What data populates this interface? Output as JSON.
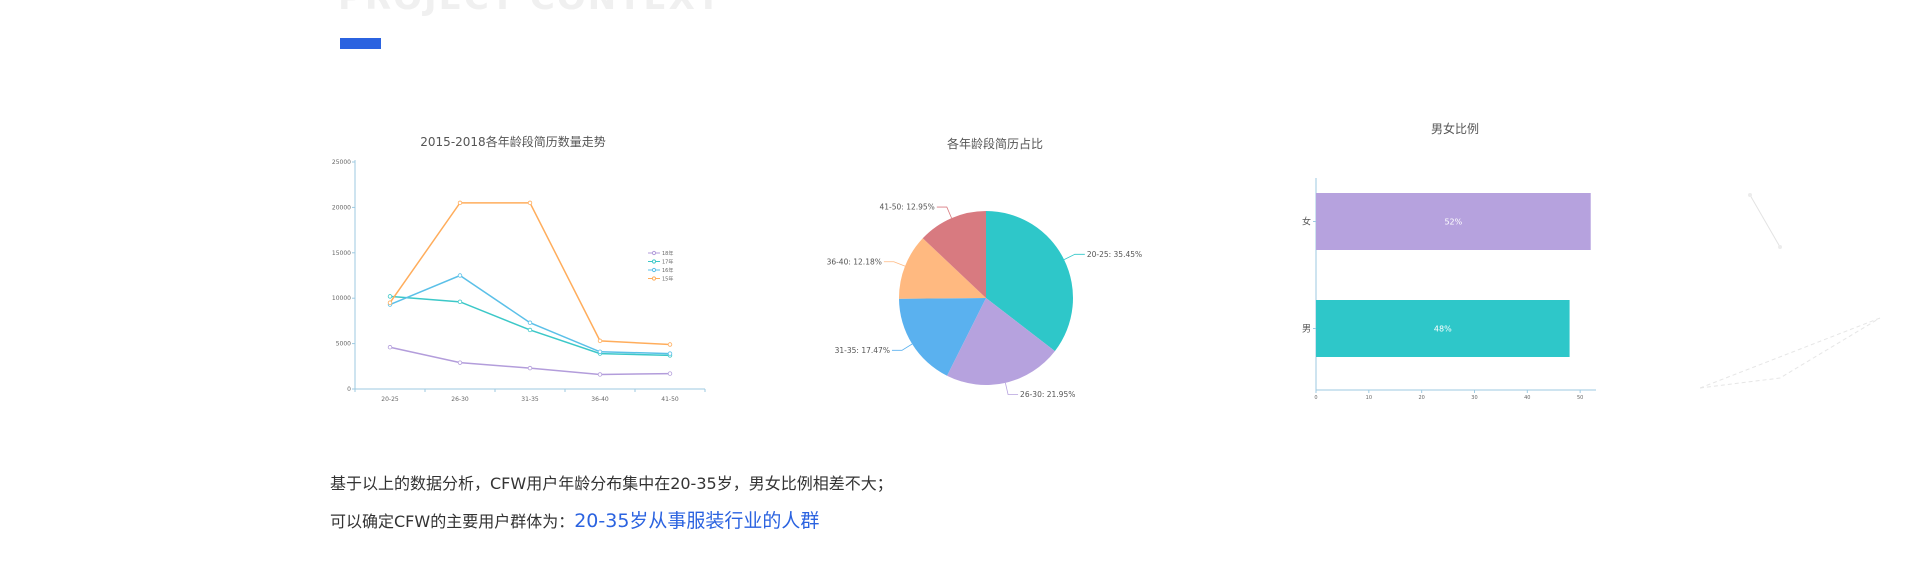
{
  "header": {
    "title_en": "PROJECT CONTEXT"
  },
  "colors": {
    "accent": "#2b63e0"
  },
  "chart_data": [
    {
      "type": "line",
      "title": "2015-2018各年龄段简历数量走势",
      "categories": [
        "20-25",
        "26-30",
        "31-35",
        "36-40",
        "41-50"
      ],
      "yticks": [
        0,
        5000,
        10000,
        15000,
        20000,
        25000
      ],
      "ylim": [
        0,
        25000
      ],
      "legend_position": "right",
      "series": [
        {
          "name": "18年",
          "color": "#b39ddb",
          "values": [
            4600,
            2900,
            2300,
            1600,
            1700
          ]
        },
        {
          "name": "17年",
          "color": "#3cc8c8",
          "values": [
            10200,
            9600,
            6500,
            3900,
            3700
          ]
        },
        {
          "name": "16年",
          "color": "#5bc0e8",
          "values": [
            9300,
            12500,
            7300,
            4100,
            3900
          ]
        },
        {
          "name": "15年",
          "color": "#ffad5c",
          "values": [
            9500,
            20500,
            20500,
            5300,
            4900
          ]
        }
      ]
    },
    {
      "type": "pie",
      "title": "各年龄段简历占比",
      "slices": [
        {
          "label": "20-25: 35.45%",
          "value": 35.45,
          "color": "#2ec7c9"
        },
        {
          "label": "26-30: 21.95%",
          "value": 21.95,
          "color": "#b6a2de"
        },
        {
          "label": "31-35: 17.47%",
          "value": 17.47,
          "color": "#5ab1ef"
        },
        {
          "label": "36-40: 12.18%",
          "value": 12.18,
          "color": "#ffb980"
        },
        {
          "label": "41-50: 12.95%",
          "value": 12.95,
          "color": "#d87a80"
        }
      ]
    },
    {
      "type": "bar",
      "orientation": "horizontal",
      "title": "男女比例",
      "categories": [
        "女",
        "男"
      ],
      "values": [
        52,
        48
      ],
      "value_labels": [
        "52%",
        "48%"
      ],
      "colors": [
        "#b6a2de",
        "#2ec7c9"
      ],
      "xticks": [
        0,
        10,
        20,
        30,
        40,
        50
      ],
      "xlim": [
        0,
        53
      ]
    }
  ],
  "conclusion": {
    "line1": "基于以上的数据分析，CFW用户年龄分布集中在20-35岁，男女比例相差不大；",
    "line2_prefix": "可以确定CFW的主要用户群体为：",
    "line2_highlight": "20-35岁从事服装行业的人群"
  }
}
